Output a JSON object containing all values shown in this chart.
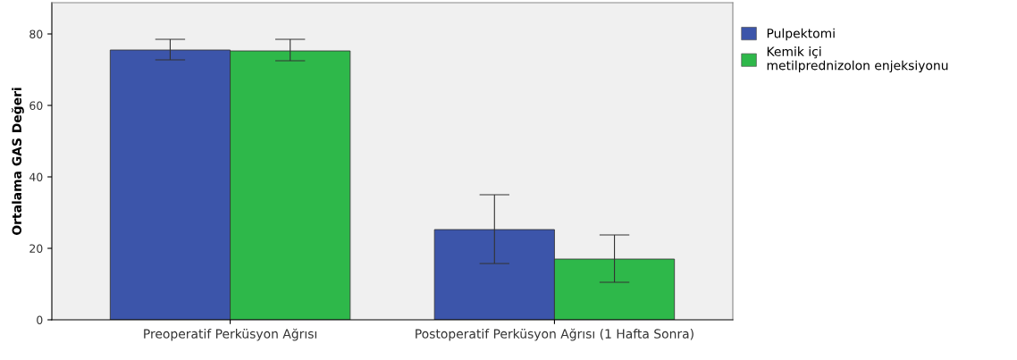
{
  "chart_data": {
    "type": "bar",
    "ylabel": "Ortalama GAS Değeri",
    "categories": [
      "Preoperatif Perküsyon Ağrısı",
      "Postoperatif Perküsyon Ağrısı (1 Hafta Sonra)"
    ],
    "series": [
      {
        "name": "Pulpektomi",
        "color": "#3c55aa",
        "values": [
          75.5,
          25.25
        ],
        "errors": [
          [
            72.75,
            78.5
          ],
          [
            15.75,
            35
          ]
        ]
      },
      {
        "name": "Kemik içi\nmetilprednizolon enjeksiyonu",
        "color": "#2eb84a",
        "values": [
          75.25,
          17
        ],
        "errors": [
          [
            72.5,
            78.5
          ],
          [
            10.5,
            23.75
          ]
        ]
      }
    ],
    "ylim": [
      0,
      88.75
    ],
    "yticks": [
      0,
      20,
      40,
      60,
      80
    ],
    "grid": false,
    "legend": "top right"
  }
}
